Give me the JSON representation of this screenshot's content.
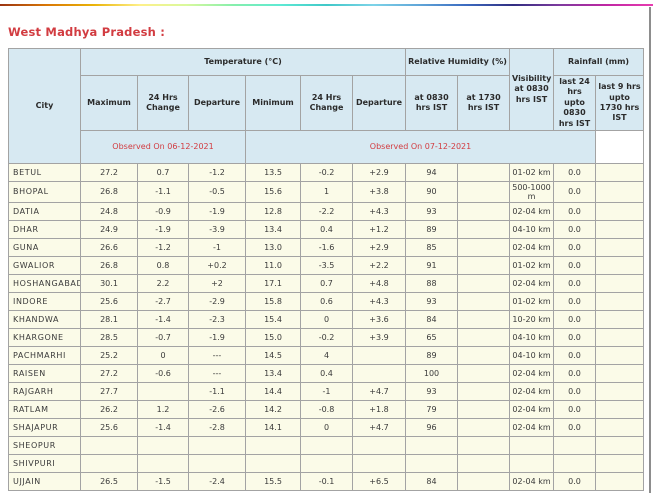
{
  "page": {
    "title": "West Madhya Pradesh :"
  },
  "colors": {
    "accent_red": "#d23c41",
    "header_bg": "#d7e9f2",
    "row_bg": "#fbfbe8",
    "border": "#a3a3a3",
    "rainbow": [
      "#9a3412",
      "#d97706",
      "#eab308",
      "#fef08a",
      "#d9f99d",
      "#86efac",
      "#5eead4",
      "#40c8c8",
      "#7dd3e8",
      "#60a5d8",
      "#3b6ac0",
      "#312e81",
      "#7e3a9e",
      "#c026a3",
      "#e83cb0"
    ]
  },
  "table": {
    "header": {
      "city": "City",
      "temperature_group": "Temperature (°C)",
      "humidity_group": "Relative Humidity (%)",
      "visibility": "Visibility at 0830 hrs IST",
      "rainfall_group": "Rainfall (mm)",
      "sub": [
        "Maximum",
        "24 Hrs Change",
        "Departure",
        "Minimum",
        "24 Hrs Change",
        "Departure",
        "at 0830 hrs IST",
        "at 1730 hrs IST",
        "last 24 hrs upto 0830 hrs IST",
        "last 9 hrs upto 1730 hrs IST"
      ],
      "observed_left": "Observed On 06-12-2021",
      "observed_right": "Observed On 07-12-2021"
    },
    "rows": [
      {
        "city": "BETUL",
        "values": [
          "27.2",
          "0.7",
          "-1.2",
          "13.5",
          "-0.2",
          "+2.9",
          "94",
          "",
          "01-02 km",
          "0.0",
          ""
        ]
      },
      {
        "city": "BHOPAL",
        "values": [
          "26.8",
          "-1.1",
          "-0.5",
          "15.6",
          "1",
          "+3.8",
          "90",
          "",
          "500-1000 m",
          "0.0",
          ""
        ]
      },
      {
        "city": "DATIA",
        "values": [
          "24.8",
          "-0.9",
          "-1.9",
          "12.8",
          "-2.2",
          "+4.3",
          "93",
          "",
          "02-04 km",
          "0.0",
          ""
        ]
      },
      {
        "city": "DHAR",
        "values": [
          "24.9",
          "-1.9",
          "-3.9",
          "13.4",
          "0.4",
          "+1.2",
          "89",
          "",
          "04-10 km",
          "0.0",
          ""
        ]
      },
      {
        "city": "GUNA",
        "values": [
          "26.6",
          "-1.2",
          "-1",
          "13.0",
          "-1.6",
          "+2.9",
          "85",
          "",
          "02-04 km",
          "0.0",
          ""
        ]
      },
      {
        "city": "GWALIOR",
        "values": [
          "26.8",
          "0.8",
          "+0.2",
          "11.0",
          "-3.5",
          "+2.2",
          "91",
          "",
          "01-02 km",
          "0.0",
          ""
        ]
      },
      {
        "city": "HOSHANGABAD",
        "values": [
          "30.1",
          "2.2",
          "+2",
          "17.1",
          "0.7",
          "+4.8",
          "88",
          "",
          "02-04 km",
          "0.0",
          ""
        ]
      },
      {
        "city": "INDORE",
        "values": [
          "25.6",
          "-2.7",
          "-2.9",
          "15.8",
          "0.6",
          "+4.3",
          "93",
          "",
          "01-02 km",
          "0.0",
          ""
        ]
      },
      {
        "city": "KHANDWA",
        "values": [
          "28.1",
          "-1.4",
          "-2.3",
          "15.4",
          "0",
          "+3.6",
          "84",
          "",
          "10-20 km",
          "0.0",
          ""
        ]
      },
      {
        "city": "KHARGONE",
        "values": [
          "28.5",
          "-0.7",
          "-1.9",
          "15.0",
          "-0.2",
          "+3.9",
          "65",
          "",
          "04-10 km",
          "0.0",
          ""
        ]
      },
      {
        "city": "PACHMARHI",
        "values": [
          "25.2",
          "0",
          "---",
          "14.5",
          "4",
          "",
          "89",
          "",
          "04-10 km",
          "0.0",
          ""
        ]
      },
      {
        "city": "RAISEN",
        "values": [
          "27.2",
          "-0.6",
          "---",
          "13.4",
          "0.4",
          "",
          "100",
          "",
          "02-04 km",
          "0.0",
          ""
        ]
      },
      {
        "city": "RAJGARH",
        "values": [
          "27.7",
          "",
          "-1.1",
          "14.4",
          "-1",
          "+4.7",
          "93",
          "",
          "02-04 km",
          "0.0",
          ""
        ]
      },
      {
        "city": "RATLAM",
        "values": [
          "26.2",
          "1.2",
          "-2.6",
          "14.2",
          "-0.8",
          "+1.8",
          "79",
          "",
          "02-04 km",
          "0.0",
          ""
        ]
      },
      {
        "city": "SHAJAPUR",
        "values": [
          "25.6",
          "-1.4",
          "-2.8",
          "14.1",
          "0",
          "+4.7",
          "96",
          "",
          "02-04 km",
          "0.0",
          ""
        ]
      },
      {
        "city": "SHEOPUR",
        "values": [
          "",
          "",
          "",
          "",
          "",
          "",
          "",
          "",
          "",
          "",
          ""
        ]
      },
      {
        "city": "SHIVPURI",
        "values": [
          "",
          "",
          "",
          "",
          "",
          "",
          "",
          "",
          "",
          "",
          ""
        ]
      },
      {
        "city": "UJJAIN",
        "values": [
          "26.5",
          "-1.5",
          "-2.4",
          "15.5",
          "-0.1",
          "+6.5",
          "84",
          "",
          "02-04 km",
          "0.0",
          ""
        ]
      }
    ]
  }
}
